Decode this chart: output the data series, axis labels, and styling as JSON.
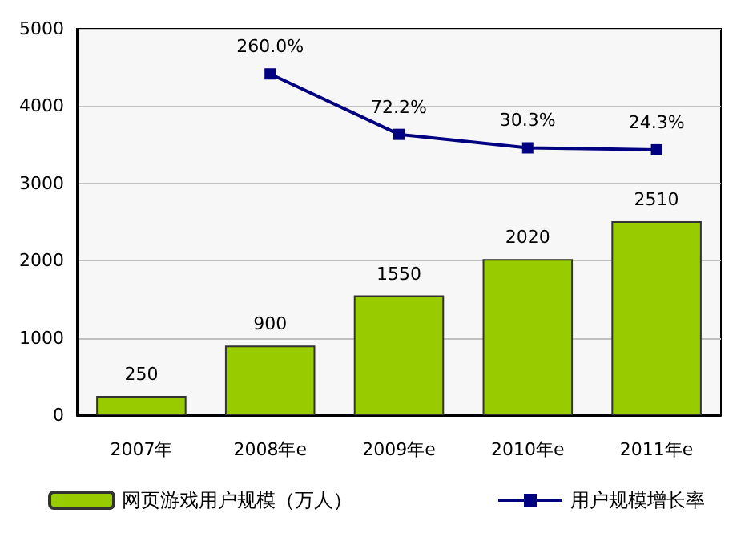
{
  "chart_data": {
    "type": "bar",
    "categories": [
      "2007年",
      "2008年e",
      "2009年e",
      "2010年e",
      "2011年e"
    ],
    "series": [
      {
        "name": "网页游戏用户规模（万人）",
        "color": "#99cc00",
        "values": [
          250,
          900,
          1550,
          2020,
          2510
        ]
      },
      {
        "name": "用户规模增长率",
        "type": "line",
        "axis": "y2",
        "color": "#000080",
        "values": [
          null,
          260.0,
          72.2,
          30.3,
          24.3
        ],
        "value_labels": [
          null,
          "260.0%",
          "72.2%",
          "30.3%",
          "24.3%"
        ]
      }
    ],
    "ylim": [
      0,
      5000
    ],
    "yticks": [
      0,
      1000,
      2000,
      3000,
      4000,
      5000
    ],
    "y2lim": [
      -800,
      400
    ],
    "data_labels": true,
    "grid": "y",
    "legend": "bottom",
    "marker": "square",
    "line_style": "solid"
  }
}
